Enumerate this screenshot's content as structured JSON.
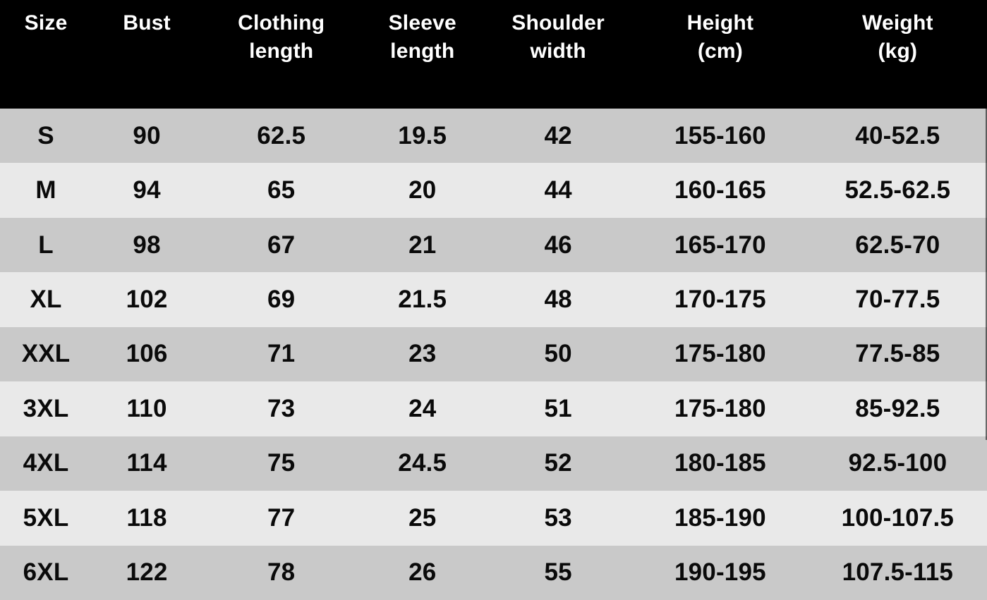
{
  "colors": {
    "header_bg": "#000000",
    "header_text": "#ffffff",
    "row_dark": "#c9c9c9",
    "row_light": "#e9e9e9",
    "cell_text": "#0a0a0a"
  },
  "table": {
    "columns": [
      "Size",
      "Bust",
      "Clothing\nlength",
      "Sleeve\nlength",
      "Shoulder\nwidth",
      "Height\n(cm)",
      "Weight\n(kg)"
    ],
    "rows": [
      [
        "S",
        "90",
        "62.5",
        "19.5",
        "42",
        "155-160",
        "40-52.5"
      ],
      [
        "M",
        "94",
        "65",
        "20",
        "44",
        "160-165",
        "52.5-62.5"
      ],
      [
        "L",
        "98",
        "67",
        "21",
        "46",
        "165-170",
        "62.5-70"
      ],
      [
        "XL",
        "102",
        "69",
        "21.5",
        "48",
        "170-175",
        "70-77.5"
      ],
      [
        "XXL",
        "106",
        "71",
        "23",
        "50",
        "175-180",
        "77.5-85"
      ],
      [
        "3XL",
        "110",
        "73",
        "24",
        "51",
        "175-180",
        "85-92.5"
      ],
      [
        "4XL",
        "114",
        "75",
        "24.5",
        "52",
        "180-185",
        "92.5-100"
      ],
      [
        "5XL",
        "118",
        "77",
        "25",
        "53",
        "185-190",
        "100-107.5"
      ],
      [
        "6XL",
        "122",
        "78",
        "26",
        "55",
        "190-195",
        "107.5-115"
      ]
    ]
  },
  "chart_data": {
    "type": "table",
    "columns": [
      "Size",
      "Bust",
      "Clothing length",
      "Sleeve length",
      "Shoulder width",
      "Height (cm)",
      "Weight (kg)"
    ],
    "rows": [
      {
        "size": "S",
        "bust": 90,
        "clothing_length": 62.5,
        "sleeve_length": 19.5,
        "shoulder_width": 42,
        "height_cm": "155-160",
        "weight_kg": "40-52.5"
      },
      {
        "size": "M",
        "bust": 94,
        "clothing_length": 65,
        "sleeve_length": 20,
        "shoulder_width": 44,
        "height_cm": "160-165",
        "weight_kg": "52.5-62.5"
      },
      {
        "size": "L",
        "bust": 98,
        "clothing_length": 67,
        "sleeve_length": 21,
        "shoulder_width": 46,
        "height_cm": "165-170",
        "weight_kg": "62.5-70"
      },
      {
        "size": "XL",
        "bust": 102,
        "clothing_length": 69,
        "sleeve_length": 21.5,
        "shoulder_width": 48,
        "height_cm": "170-175",
        "weight_kg": "70-77.5"
      },
      {
        "size": "XXL",
        "bust": 106,
        "clothing_length": 71,
        "sleeve_length": 23,
        "shoulder_width": 50,
        "height_cm": "175-180",
        "weight_kg": "77.5-85"
      },
      {
        "size": "3XL",
        "bust": 110,
        "clothing_length": 73,
        "sleeve_length": 24,
        "shoulder_width": 51,
        "height_cm": "175-180",
        "weight_kg": "85-92.5"
      },
      {
        "size": "4XL",
        "bust": 114,
        "clothing_length": 75,
        "sleeve_length": 24.5,
        "shoulder_width": 52,
        "height_cm": "180-185",
        "weight_kg": "92.5-100"
      },
      {
        "size": "5XL",
        "bust": 118,
        "clothing_length": 77,
        "sleeve_length": 25,
        "shoulder_width": 53,
        "height_cm": "185-190",
        "weight_kg": "100-107.5"
      },
      {
        "size": "6XL",
        "bust": 122,
        "clothing_length": 78,
        "sleeve_length": 26,
        "shoulder_width": 55,
        "height_cm": "190-195",
        "weight_kg": "107.5-115"
      }
    ],
    "layout_hints": {
      "header_style": "black background, white bold text",
      "row_striping": "alternating medium gray / light gray, starting medium gray"
    }
  }
}
